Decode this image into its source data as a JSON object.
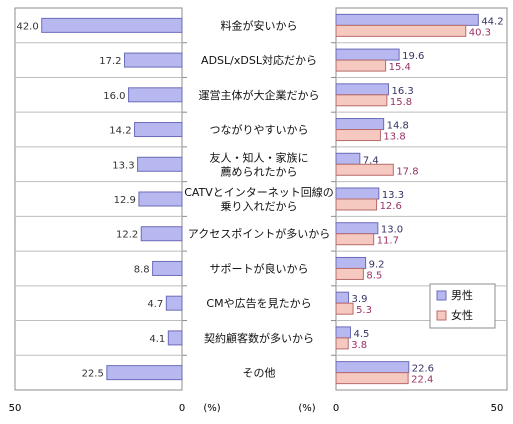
{
  "chart_data": [
    {
      "type": "bar",
      "orientation": "horizontal",
      "direction": "right-to-left",
      "categories": [
        "料金が安いから",
        "ADSL/xDSL対応だから",
        "運営主体が大企業だから",
        "つながりやすいから",
        "友人・知人・家族に\n薦められたから",
        "CATVとインターネット回線の\n乗り入れだから",
        "アクセスポイントが多いから",
        "サポートが良いから",
        "CMや広告を見たから",
        "契約顧客数が多いから",
        "その他"
      ],
      "values": [
        42.0,
        17.2,
        16.0,
        14.2,
        13.3,
        12.9,
        12.2,
        8.8,
        4.7,
        4.1,
        22.5
      ],
      "value_labels": [
        "42.0",
        "17.2",
        "16.0",
        "14.2",
        "13.3",
        "12.9",
        "12.2",
        "8.8",
        "4.7",
        "4.1",
        "22.5"
      ],
      "xlim": [
        50,
        0
      ],
      "xticks": [
        "50",
        "0"
      ],
      "xunit": "(%)",
      "colors": {
        "bar_fill": "#b8b8f0",
        "bar_stroke": "#6b6bb8",
        "label": "#333333"
      }
    },
    {
      "type": "bar",
      "orientation": "horizontal",
      "categories": [
        "料金が安いから",
        "ADSL/xDSL対応だから",
        "運営主体が大企業だから",
        "つながりやすいから",
        "友人・知人・家族に\n薦められたから",
        "CATVとインターネット回線の\n乗り入れだから",
        "アクセスポイントが多いから",
        "サポートが良いから",
        "CMや広告を見たから",
        "契約顧客数が多いから",
        "その他"
      ],
      "series": [
        {
          "name": "男性",
          "values": [
            44.2,
            19.6,
            16.3,
            14.8,
            7.4,
            13.3,
            13.0,
            9.2,
            3.9,
            4.5,
            22.6
          ],
          "color": "#b8b8f0",
          "stroke": "#6b6bb8",
          "label_color": "#333366"
        },
        {
          "name": "女性",
          "values": [
            40.3,
            15.4,
            15.8,
            13.8,
            17.8,
            12.6,
            11.7,
            8.5,
            5.3,
            3.8,
            22.4
          ],
          "color": "#f5c8c0",
          "stroke": "#b86b6b",
          "label_color": "#993366"
        }
      ],
      "value_labels": {
        "男性": [
          "44.2",
          "19.6",
          "16.3",
          "14.8",
          "7.4",
          "13.3",
          "13.0",
          "9.2",
          "3.9",
          "4.5",
          "22.6"
        ],
        "女性": [
          "40.3",
          "15.4",
          "15.8",
          "13.8",
          "17.8",
          "12.6",
          "11.7",
          "8.5",
          "5.3",
          "3.8",
          "22.4"
        ]
      },
      "xlim": [
        0,
        50
      ],
      "xticks": [
        "0",
        "50"
      ],
      "xunit": "(%)",
      "legend": "bottom-right"
    }
  ]
}
